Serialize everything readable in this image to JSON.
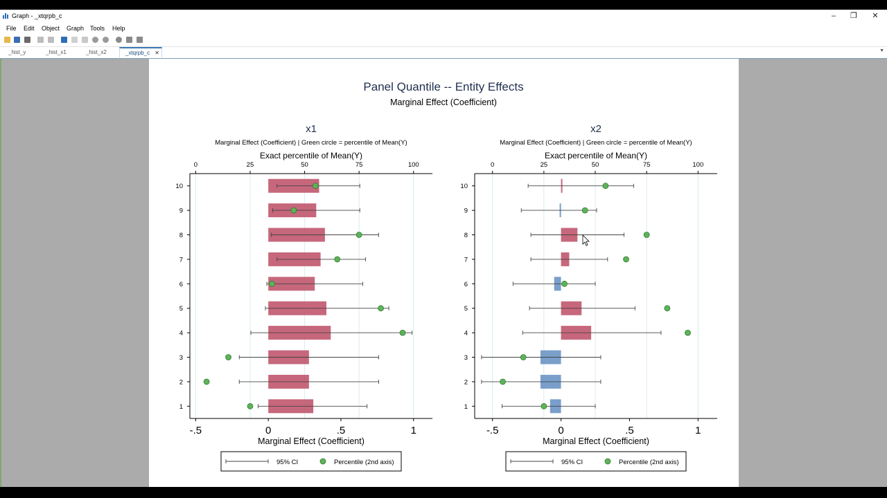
{
  "window": {
    "title": "Graph - _xtqrpb_c"
  },
  "menu": [
    "File",
    "Edit",
    "Object",
    "Graph",
    "Tools",
    "Help"
  ],
  "toolbar_icons": [
    "open-icon",
    "save-icon",
    "print-icon",
    "copy-icon",
    "rename-icon",
    "pointer-icon",
    "undo-icon",
    "redo-icon",
    "record-icon",
    "pause-icon",
    "play-icon"
  ],
  "tabs": [
    {
      "label": "_hist_y",
      "active": false
    },
    {
      "label": "_hist_x1",
      "active": false
    },
    {
      "label": "_hist_x2",
      "active": false
    },
    {
      "label": "_xtqrpb_c",
      "active": true
    }
  ],
  "colors": {
    "pos_bar": "#c0566e",
    "neg_bar": "#6a95c4",
    "dot": "#5fb25a",
    "dot_edge": "#2f7d2f",
    "ci": "#444444",
    "grid": "#d9ecec"
  },
  "chart_data": {
    "type": "bar",
    "title": "Panel Quantile -- Entity Effects",
    "subtitle": "Marginal Effect (Coefficient)",
    "panels": [
      {
        "name": "x1",
        "note": "Marginal Effect (Coefficient)  |  Green circle = percentile of Mean(Y)",
        "top_axis_label": "Exact percentile of Mean(Y)",
        "top_axis_ticks": [
          0,
          25,
          50,
          75,
          100
        ],
        "top_axis_range": [
          0,
          100
        ],
        "xlabel": "Marginal Effect (Coefficient)",
        "x_ticks": [
          -0.5,
          0,
          0.5,
          1
        ],
        "x_tick_labels": [
          "-.5",
          "0",
          ".5",
          "1"
        ],
        "xlim": [
          -0.54,
          1.13
        ],
        "categories": [
          1,
          2,
          3,
          4,
          5,
          6,
          7,
          8,
          9,
          10
        ],
        "coef": [
          0.31,
          0.28,
          0.28,
          0.43,
          0.4,
          0.32,
          0.36,
          0.39,
          0.33,
          0.35
        ],
        "ci_lo": [
          -0.07,
          -0.2,
          -0.2,
          -0.12,
          -0.02,
          -0.01,
          0.06,
          0.02,
          0.03,
          0.06
        ],
        "ci_hi": [
          0.68,
          0.76,
          0.76,
          0.99,
          0.83,
          0.65,
          0.67,
          0.76,
          0.63,
          0.63
        ],
        "percentile": [
          25,
          5,
          15,
          95,
          85,
          35,
          65,
          75,
          45,
          55
        ],
        "legend": {
          "ci": "95% CI",
          "dot": "Percentile (2nd axis)"
        }
      },
      {
        "name": "x2",
        "note": "Marginal Effect (Coefficient)  |  Green circle = percentile of Mean(Y)",
        "top_axis_label": "Exact percentile of Mean(Y)",
        "top_axis_ticks": [
          0,
          25,
          50,
          75,
          100
        ],
        "top_axis_range": [
          0,
          100
        ],
        "xlabel": "Marginal Effect (Coefficient)",
        "x_ticks": [
          -0.5,
          0,
          0.5,
          1
        ],
        "x_tick_labels": [
          "-.5",
          "0",
          ".5",
          "1"
        ],
        "xlim": [
          -0.63,
          1.14
        ],
        "categories": [
          1,
          2,
          3,
          4,
          5,
          6,
          7,
          8,
          9,
          10
        ],
        "coef": [
          -0.08,
          -0.15,
          -0.15,
          0.22,
          0.15,
          -0.05,
          0.06,
          0.12,
          -0.01,
          0.01
        ],
        "ci_lo": [
          -0.43,
          -0.58,
          -0.58,
          -0.28,
          -0.23,
          -0.35,
          -0.22,
          -0.22,
          -0.29,
          -0.24
        ],
        "ci_hi": [
          0.25,
          0.29,
          0.29,
          0.73,
          0.54,
          0.25,
          0.34,
          0.46,
          0.26,
          0.53
        ],
        "percentile": [
          25,
          5,
          15,
          95,
          85,
          35,
          65,
          75,
          45,
          55
        ],
        "legend": {
          "ci": "95% CI",
          "dot": "Percentile (2nd axis)"
        }
      }
    ]
  }
}
